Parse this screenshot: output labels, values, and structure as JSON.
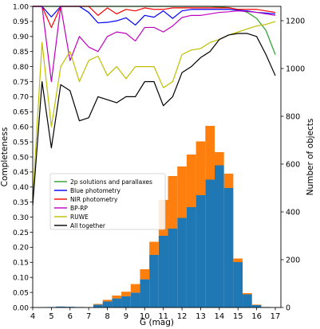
{
  "chart_data": {
    "type": "bar+line",
    "xlabel": "G (mag)",
    "ylabel_left": "Completeness",
    "ylabel_right": "Number of objects",
    "xlim": [
      4,
      17.3
    ],
    "ylim_left": [
      0,
      1.0
    ],
    "ylim_right": [
      0,
      1260
    ],
    "x_ticks": [
      "4",
      "5",
      "6",
      "7",
      "8",
      "9",
      "10",
      "11",
      "12",
      "13",
      "14",
      "15",
      "16",
      "17"
    ],
    "y_left_ticks": [
      "0.00",
      "0.05",
      "0.10",
      "0.15",
      "0.20",
      "0.25",
      "0.30",
      "0.35",
      "0.40",
      "0.45",
      "0.50",
      "0.55",
      "0.60",
      "0.65",
      "0.70",
      "0.75",
      "0.80",
      "0.85",
      "0.90",
      "0.95",
      "1.00"
    ],
    "y_right_ticks": [
      "0",
      "200",
      "400",
      "600",
      "800",
      "1000",
      "1200"
    ],
    "grid": false,
    "legend_position": "center-left",
    "histogram": {
      "bin_edges": [
        4.25,
        4.75,
        5.25,
        5.75,
        6.25,
        6.75,
        7.25,
        7.75,
        8.25,
        8.75,
        9.25,
        9.75,
        10.25,
        10.75,
        11.25,
        11.75,
        12.25,
        12.75,
        13.25,
        13.75,
        14.25,
        14.75,
        15.25,
        15.75,
        16.25,
        16.75,
        17.25
      ],
      "series": [
        {
          "name": "blue",
          "color": "#1f77b4",
          "values": [
            1,
            2,
            4,
            3,
            2,
            1,
            12,
            25,
            38,
            47,
            62,
            118,
            220,
            300,
            330,
            375,
            420,
            470,
            535,
            595,
            500,
            190,
            55,
            10,
            2,
            0
          ]
        },
        {
          "name": "orange",
          "color": "#ff7f0e",
          "values": [
            0,
            0,
            0,
            0,
            0,
            0,
            3,
            7,
            12,
            19,
            36,
            42,
            55,
            150,
            220,
            215,
            220,
            225,
            225,
            55,
            60,
            15,
            5,
            2,
            0,
            0
          ]
        }
      ]
    },
    "series": [
      {
        "name": "2p solutions and parallaxes",
        "color": "#2ca02c",
        "x": [
          4.0,
          4.5,
          5.0,
          5.5,
          6.0,
          6.5,
          7.0,
          7.5,
          8.0,
          8.5,
          9.0,
          9.5,
          10.0,
          10.5,
          11.0,
          11.5,
          12.0,
          12.5,
          13.0,
          13.5,
          14.0,
          14.5,
          15.0,
          15.5,
          16.0,
          16.5,
          17.0
        ],
        "y": [
          1.0,
          1.0,
          1.0,
          1.0,
          1.0,
          1.0,
          1.0,
          1.0,
          1.0,
          1.0,
          1.0,
          1.0,
          1.0,
          1.0,
          1.0,
          1.0,
          1.0,
          1.0,
          1.0,
          1.0,
          0.998,
          0.996,
          0.99,
          0.98,
          0.96,
          0.92,
          0.84
        ]
      },
      {
        "name": "Blue photometry",
        "color": "#0000ff",
        "x": [
          4.0,
          4.5,
          5.0,
          5.5,
          6.0,
          6.5,
          7.0,
          7.5,
          8.0,
          8.5,
          9.0,
          9.5,
          10.0,
          10.5,
          11.0,
          11.5,
          12.0,
          12.5,
          13.0,
          13.5,
          14.0,
          14.5,
          15.0,
          15.5,
          16.0,
          16.5,
          17.0
        ],
        "y": [
          1.0,
          1.0,
          0.965,
          1.0,
          1.0,
          1.0,
          0.98,
          0.945,
          0.947,
          0.952,
          0.962,
          0.938,
          0.97,
          0.964,
          0.985,
          0.96,
          0.985,
          0.99,
          0.99,
          0.99,
          0.99,
          0.99,
          0.987,
          0.985,
          0.98,
          0.978,
          0.975
        ]
      },
      {
        "name": "NIR photometry",
        "color": "#ff0000",
        "x": [
          4.0,
          4.5,
          5.0,
          5.5,
          6.0,
          6.5,
          7.0,
          7.5,
          8.0,
          8.5,
          9.0,
          9.5,
          10.0,
          10.5,
          11.0,
          11.5,
          12.0,
          12.5,
          13.0,
          13.5,
          14.0,
          14.5,
          15.0,
          15.5,
          16.0,
          16.5,
          17.0
        ],
        "y": [
          1.0,
          1.0,
          0.93,
          1.0,
          1.0,
          1.0,
          1.0,
          0.97,
          0.995,
          0.975,
          0.99,
          0.985,
          0.995,
          0.99,
          0.99,
          0.995,
          0.995,
          0.995,
          0.995,
          0.995,
          0.995,
          0.995,
          0.99,
          0.99,
          0.99,
          0.985,
          0.98
        ]
      },
      {
        "name": "BP-RP",
        "color": "#bf00bf",
        "x": [
          4.0,
          4.5,
          5.0,
          5.5,
          6.0,
          6.5,
          7.0,
          7.5,
          8.0,
          8.5,
          9.0,
          9.5,
          10.0,
          10.5,
          11.0,
          11.5,
          12.0,
          12.5,
          13.0,
          13.5,
          14.0,
          14.5,
          15.0,
          15.5,
          16.0,
          16.5,
          17.0
        ],
        "y": [
          1.0,
          1.0,
          0.75,
          1.0,
          0.82,
          0.9,
          0.865,
          0.85,
          0.9,
          0.915,
          0.91,
          0.885,
          0.93,
          0.93,
          0.915,
          0.935,
          0.963,
          0.97,
          0.97,
          0.975,
          0.98,
          0.982,
          0.985,
          0.983,
          0.98,
          0.975,
          0.97
        ]
      },
      {
        "name": "RUWE",
        "color": "#bfbf00",
        "x": [
          4.0,
          4.5,
          5.0,
          5.5,
          6.0,
          6.5,
          7.0,
          7.5,
          8.0,
          8.5,
          9.0,
          9.5,
          10.0,
          10.5,
          11.0,
          11.5,
          12.0,
          12.5,
          13.0,
          13.5,
          14.0,
          14.5,
          15.0,
          15.5,
          16.0,
          16.5,
          17.0
        ],
        "y": [
          0.36,
          0.88,
          0.6,
          0.8,
          0.85,
          0.75,
          0.82,
          0.835,
          0.77,
          0.8,
          0.76,
          0.8,
          0.8,
          0.8,
          0.73,
          0.75,
          0.84,
          0.855,
          0.86,
          0.88,
          0.89,
          0.905,
          0.915,
          0.925,
          0.935,
          0.94,
          0.95
        ]
      },
      {
        "name": "All together",
        "color": "#000000",
        "x": [
          4.0,
          4.5,
          5.0,
          5.5,
          6.0,
          6.5,
          7.0,
          7.5,
          8.0,
          8.5,
          9.0,
          9.5,
          10.0,
          10.5,
          11.0,
          11.5,
          12.0,
          12.5,
          13.0,
          13.5,
          14.0,
          14.5,
          15.0,
          15.5,
          16.0,
          16.5,
          17.0
        ],
        "y": [
          0.34,
          0.75,
          0.53,
          0.74,
          0.72,
          0.62,
          0.63,
          0.7,
          0.69,
          0.68,
          0.7,
          0.7,
          0.75,
          0.75,
          0.67,
          0.7,
          0.78,
          0.8,
          0.83,
          0.85,
          0.89,
          0.905,
          0.91,
          0.91,
          0.9,
          0.84,
          0.77
        ]
      }
    ]
  }
}
